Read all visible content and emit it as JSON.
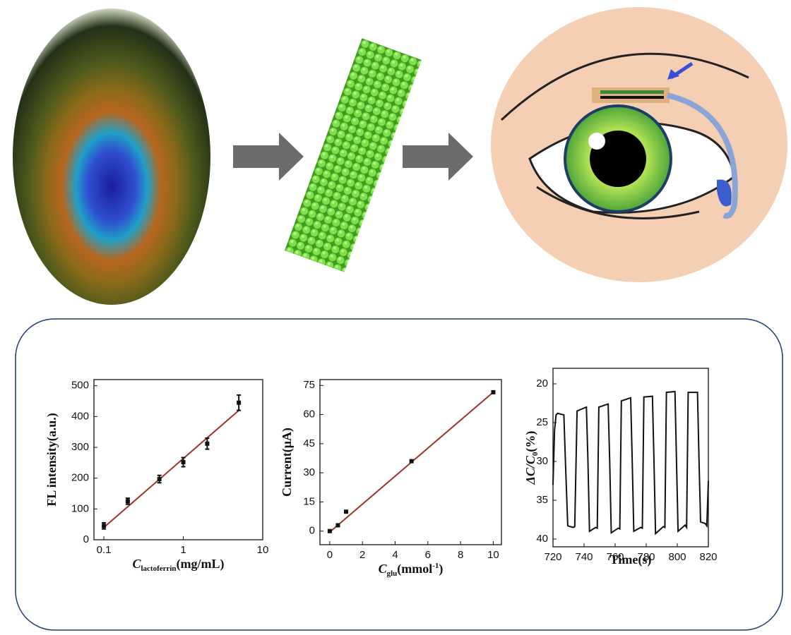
{
  "chart_data": [
    {
      "type": "scatter",
      "xscale": "log",
      "xlim": [
        0.075,
        10
      ],
      "xticks": [
        0.1,
        1,
        10
      ],
      "ylim": [
        0,
        520
      ],
      "yticks": [
        0,
        100,
        200,
        300,
        400,
        500
      ],
      "ylabel": "FL intensity(a.u.)",
      "xlabel": {
        "symbol": "C",
        "subscript": "lactoferrin",
        "unit": "(mg/mL)"
      },
      "x": [
        0.1,
        0.2,
        0.5,
        1,
        2,
        5
      ],
      "values": [
        45,
        125,
        197,
        252,
        312,
        445
      ],
      "errors": [
        10,
        10,
        12,
        15,
        18,
        25
      ],
      "color": "#111111",
      "fit": {
        "x": [
          0.1,
          5
        ],
        "values": [
          40,
          420
        ],
        "color": "#a0302a"
      }
    },
    {
      "type": "scatter",
      "xlim": [
        -0.6,
        10.5
      ],
      "xticks": [
        0,
        2,
        4,
        6,
        8,
        10
      ],
      "ylim": [
        -7,
        78
      ],
      "yticks": [
        0,
        15,
        30,
        45,
        60,
        75
      ],
      "ylabel": "Current(μA)",
      "xlabel": {
        "symbol": "C",
        "subscript": "glu",
        "unit": "(mmol",
        "superscript": "-1",
        "tail": ")"
      },
      "x": [
        0,
        0.5,
        1,
        5,
        10
      ],
      "values": [
        0,
        3,
        10,
        36,
        71.5
      ],
      "color": "#111111",
      "fit": {
        "x": [
          0,
          10
        ],
        "values": [
          -0.5,
          71.5
        ],
        "color": "#a0302a"
      }
    },
    {
      "type": "line",
      "xlim": [
        720,
        820
      ],
      "xticks": [
        720,
        740,
        760,
        780,
        800,
        820
      ],
      "ylim": [
        18,
        41
      ],
      "y_inverted": true,
      "yticks": [
        20,
        25,
        30,
        35,
        40
      ],
      "ylabel": {
        "symbol": "ΔC/C",
        "subscript": "0",
        "unit": "(%)"
      },
      "xlabel": "Time(s)",
      "color": "#111111",
      "x": [
        720,
        721,
        722,
        723,
        727,
        728,
        729.5,
        733,
        734,
        735.5,
        741.5,
        742.5,
        743.5,
        747.5,
        748.5,
        749.5,
        755.5,
        756.5,
        757.5,
        762,
        763,
        764,
        770,
        771,
        772,
        776.5,
        777.5,
        778.5,
        784,
        785,
        786,
        791,
        792,
        793,
        798.5,
        799.5,
        800.5,
        805,
        806,
        807,
        813,
        814,
        815,
        818,
        819,
        820
      ],
      "values": [
        33,
        26,
        24,
        23.8,
        24,
        30,
        38.3,
        38.5,
        38.4,
        23.5,
        23,
        30,
        39,
        38.5,
        38.6,
        23,
        22.6,
        30,
        39.2,
        38.6,
        38.7,
        22.2,
        21.8,
        30,
        39,
        38.5,
        38.6,
        21.7,
        21.6,
        30,
        39.3,
        38.4,
        38.5,
        21.1,
        21,
        30,
        39,
        38.2,
        38.5,
        21.1,
        21.1,
        30,
        37.8,
        38,
        38.3,
        32.5
      ]
    }
  ]
}
